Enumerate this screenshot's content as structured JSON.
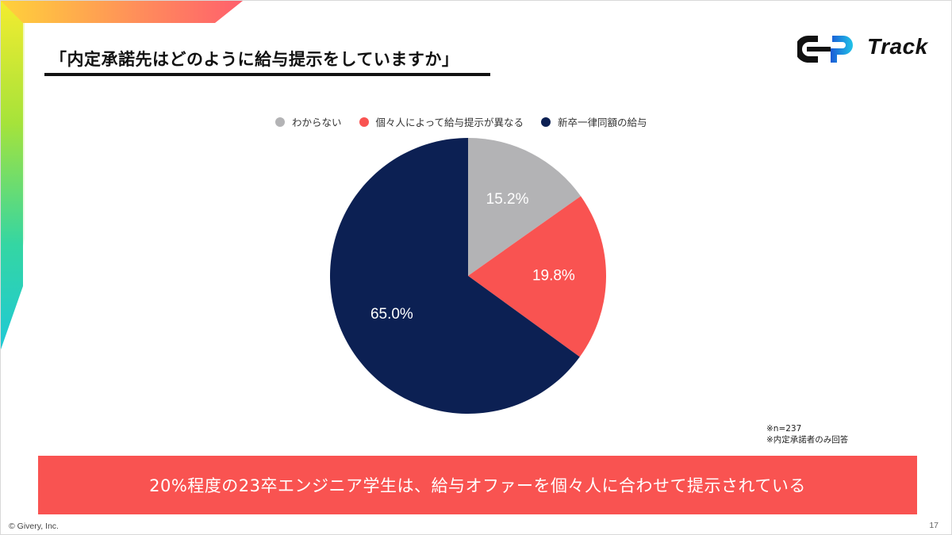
{
  "slide": {
    "title": "「内定承諾先はどのように給与提示をしていますか」",
    "logo_text": "Track",
    "notes": [
      "※n=237",
      "※内定承諾者のみ回答"
    ],
    "banner": "20%程度の23卒エンジニア学生は、給与オファーを個々人に合わせて提示されている",
    "copyright": "© Givery, Inc.",
    "page_number": "17"
  },
  "chart_data": {
    "type": "pie",
    "title": "",
    "legend_position": "top",
    "slices": [
      {
        "label": "わからない",
        "value": 15.2,
        "display": "15.2%",
        "color": "#b3b3b5"
      },
      {
        "label": "個々人によって給与提示が異なる",
        "value": 19.8,
        "display": "19.8%",
        "color": "#f95351"
      },
      {
        "label": "新卒一律同額の給与",
        "value": 65.0,
        "display": "65.0%",
        "color": "#0c2053"
      }
    ]
  }
}
